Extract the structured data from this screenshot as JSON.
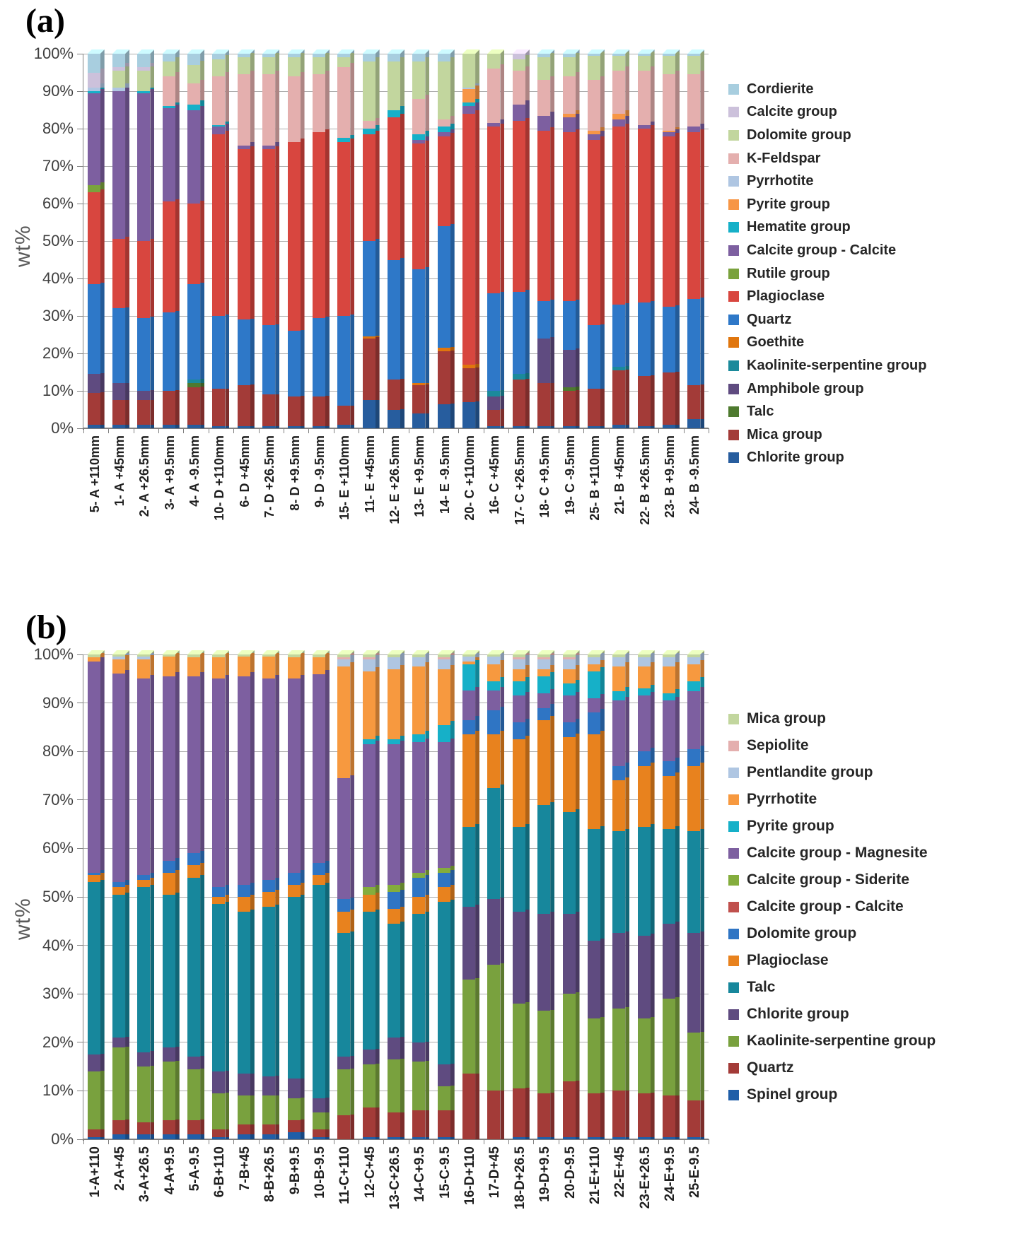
{
  "panels": [
    {
      "label": "(a)",
      "y_axis_label": "wt%"
    },
    {
      "label": "(b)",
      "y_axis_label": "wt%"
    }
  ],
  "chart_data": [
    {
      "type": "bar",
      "stacked": true,
      "panel": "a",
      "title": "",
      "xlabel": "",
      "ylabel": "wt%",
      "ylim": [
        0,
        100
      ],
      "y_tick_step": 10,
      "y_tick_suffix": "%",
      "grid": true,
      "legend_position": "right",
      "legend_order": "reverse-of-stack",
      "categories": [
        "5- A +110mm",
        "1- A +45mm",
        "2- A +26.5mm",
        "3- A +9.5mm",
        "4- A -9.5mm",
        "10- D +110mm",
        "6- D +45mm",
        "7- D +26.5mm",
        "8- D +9.5mm",
        "9- D -9.5mm",
        "15- E +110mm",
        "11- E +45mm",
        "12- E +26.5mm",
        "13- E +9.5mm",
        "14- E -9.5mm",
        "20- C +110mm",
        "16- C +45mm",
        "17- C +26.5mm",
        "18- C +9.5mm",
        "19- C -9.5mm",
        "25- B +110mm",
        "21- B +45mm",
        "22- B +26.5mm",
        "23- B +9.5mm",
        "24- B -9.5mm"
      ],
      "series": [
        {
          "name": "Chlorite group",
          "color": "#275D9E",
          "values": [
            1,
            1,
            1,
            1,
            1,
            0.5,
            0.5,
            0.5,
            0.5,
            0.5,
            1,
            7.5,
            5,
            4,
            6.5,
            7,
            0.5,
            0.5,
            0.5,
            0.5,
            0.5,
            1,
            0.5,
            1,
            2.5
          ]
        },
        {
          "name": "Mica group",
          "color": "#A33B38",
          "values": [
            8.5,
            6.5,
            6.5,
            9,
            10,
            10,
            11,
            8.5,
            8,
            8,
            5,
            16.5,
            8,
            7.5,
            14,
            9,
            4.5,
            12.5,
            11.5,
            9.5,
            10,
            14.5,
            13.5,
            14,
            9
          ]
        },
        {
          "name": "Talc",
          "color": "#4E7A2F",
          "values": [
            0,
            0,
            0,
            0,
            1,
            0,
            0,
            0,
            0,
            0,
            0,
            0,
            0,
            0,
            0,
            0,
            0,
            0,
            0,
            1,
            0,
            0,
            0,
            0,
            0
          ]
        },
        {
          "name": "Amphibole group",
          "color": "#5F4B80",
          "values": [
            5,
            4.5,
            2.5,
            0,
            0,
            0,
            0,
            0,
            0,
            0,
            0,
            0,
            0,
            0,
            0,
            0,
            3.5,
            0,
            12,
            10,
            0,
            0,
            0,
            0,
            0
          ]
        },
        {
          "name": "Kaolinite-serpentine group",
          "color": "#1B8A9B",
          "values": [
            0,
            0,
            0,
            0,
            1,
            0,
            0,
            0,
            0,
            0,
            0,
            0,
            0,
            0,
            0,
            0,
            1.5,
            1.5,
            0,
            0,
            0,
            1,
            0,
            0,
            0
          ]
        },
        {
          "name": "Goethite",
          "color": "#E0760E",
          "values": [
            0,
            0,
            0,
            0,
            0,
            0,
            0,
            0,
            0,
            0,
            0,
            0.5,
            0,
            0.5,
            1,
            1,
            0,
            0,
            0,
            0,
            0,
            0,
            0,
            0,
            0
          ]
        },
        {
          "name": "Quartz",
          "color": "#2E78C8",
          "values": [
            24,
            20,
            19.5,
            21,
            25.5,
            19.5,
            17.5,
            18.5,
            17.5,
            21,
            24,
            25.5,
            32,
            30.5,
            32.5,
            0,
            26,
            22,
            10,
            13,
            17,
            16.5,
            19.5,
            17.5,
            23
          ]
        },
        {
          "name": "Plagioclase",
          "color": "#D8463F",
          "values": [
            24.5,
            18.5,
            20.5,
            29.5,
            21.5,
            48.5,
            45.5,
            47,
            50.5,
            49.5,
            46.5,
            28.5,
            38,
            33.5,
            24,
            67,
            44.5,
            45.5,
            45.5,
            45,
            49.5,
            47.5,
            46.5,
            45.5,
            44.5
          ]
        },
        {
          "name": "Rutile group",
          "color": "#7AA23D",
          "values": [
            2,
            0,
            0,
            0,
            0,
            0,
            0,
            0,
            0,
            0,
            0,
            0,
            0,
            0,
            0,
            0,
            0,
            0,
            0,
            0,
            0,
            0,
            0,
            0,
            0
          ]
        },
        {
          "name": "Calcite group - Calcite",
          "color": "#7D5FA0",
          "values": [
            24.5,
            39.5,
            39.5,
            25,
            25,
            2,
            1,
            1,
            0,
            0,
            0,
            0,
            0,
            1,
            1,
            2,
            1,
            4.5,
            4,
            4,
            1.5,
            2,
            1,
            1,
            1.5
          ]
        },
        {
          "name": "Hematite group",
          "color": "#16B0C8",
          "values": [
            0.5,
            0,
            0.5,
            0.5,
            1.5,
            0.5,
            0,
            0,
            0,
            0,
            1,
            1.5,
            2,
            1.5,
            1.5,
            1,
            0,
            0,
            0,
            0,
            0,
            0,
            0,
            0,
            0
          ]
        },
        {
          "name": "Pyrite group",
          "color": "#F79646",
          "values": [
            0,
            0,
            0,
            0,
            0,
            0,
            0,
            0,
            0,
            0,
            0,
            0,
            0,
            0,
            0,
            3.5,
            0,
            0,
            0,
            1,
            1,
            1.5,
            0,
            0.5,
            0
          ]
        },
        {
          "name": "Pyrrhotite",
          "color": "#AFC6E2",
          "values": [
            1,
            1,
            0,
            0,
            0,
            0,
            0,
            0,
            0,
            0,
            0,
            0,
            0,
            0,
            0,
            0.5,
            0,
            0,
            0,
            0,
            0,
            0,
            0,
            0,
            0
          ]
        },
        {
          "name": "K-Feldspar",
          "color": "#E4AFAE",
          "values": [
            0,
            0,
            0,
            8,
            5.5,
            13,
            19,
            19,
            17.5,
            15.5,
            19,
            2,
            0,
            9.5,
            2,
            0,
            14.5,
            9,
            9.5,
            10,
            13.5,
            11.5,
            14.5,
            15,
            14
          ]
        },
        {
          "name": "Dolomite group",
          "color": "#C2D69E",
          "values": [
            0,
            4.5,
            5.5,
            4,
            5,
            4.5,
            4.5,
            4.5,
            5,
            4.5,
            2.5,
            16,
            13,
            10,
            15.5,
            9,
            4,
            3,
            6,
            5,
            6.5,
            4,
            4,
            5,
            5
          ]
        },
        {
          "name": "Calcite group",
          "color": "#CCC1DB",
          "values": [
            4,
            1,
            1,
            0,
            0,
            0,
            0,
            0,
            0,
            0,
            0,
            0,
            0,
            0,
            0,
            0,
            0,
            1.5,
            0,
            0,
            0,
            0,
            0,
            0,
            0
          ]
        },
        {
          "name": "Cordierite",
          "color": "#A8CEDF",
          "values": [
            5,
            3.5,
            3.5,
            2,
            3,
            1.5,
            1,
            1,
            1,
            1,
            1,
            2,
            2,
            2,
            2,
            0,
            0,
            0,
            1,
            1,
            0.5,
            0.5,
            0.5,
            0.5,
            0.5
          ]
        }
      ]
    },
    {
      "type": "bar",
      "stacked": true,
      "panel": "b",
      "title": "",
      "xlabel": "",
      "ylabel": "wt%",
      "ylim": [
        0,
        100
      ],
      "y_tick_step": 10,
      "y_tick_suffix": "%",
      "grid": true,
      "legend_position": "right",
      "legend_order": "reverse-of-stack",
      "categories": [
        "1-A+110",
        "2-A+45",
        "3-A+26.5",
        "4-A+9.5",
        "5-A-9.5",
        "6-B+110",
        "7-B+45",
        "8-B+26.5",
        "9-B+9.5",
        "10-B-9.5",
        "11-C+110",
        "12-C+45",
        "13-C+26.5",
        "14-C+9.5",
        "15-C-9.5",
        "16-D+110",
        "17-D+45",
        "18-D+26.5",
        "19-D+9.5",
        "20-D-9.5",
        "21-E+110",
        "22-E+45",
        "23-E+26.5",
        "24-E+9.5",
        "25-E-9.5"
      ],
      "series": [
        {
          "name": "Spinel group",
          "color": "#1F5EA8",
          "values": [
            0.5,
            1,
            1,
            1,
            1,
            0.5,
            1,
            1,
            1.5,
            0.5,
            0,
            0.5,
            0.5,
            0.5,
            0.5,
            0,
            0,
            0.5,
            0.5,
            0.5,
            0.5,
            0.5,
            0.5,
            0.5,
            0.5
          ]
        },
        {
          "name": "Quartz",
          "color": "#A33B38",
          "values": [
            1.5,
            3,
            2.5,
            3,
            3,
            1.5,
            2,
            2,
            2.5,
            1.5,
            5,
            6,
            5,
            5.5,
            5.5,
            13.5,
            10,
            10,
            9,
            11.5,
            9,
            9.5,
            9,
            8.5,
            7.5
          ]
        },
        {
          "name": "Kaolinite-serpentine group",
          "color": "#79A13E",
          "values": [
            12,
            15,
            11.5,
            12,
            10.5,
            7.5,
            6,
            6,
            4.5,
            3.5,
            9.5,
            9,
            11,
            10,
            5,
            19.5,
            26,
            17.5,
            17,
            18,
            15.5,
            17,
            15.5,
            20,
            14
          ]
        },
        {
          "name": "Chlorite group",
          "color": "#5F4B80",
          "values": [
            3.5,
            2,
            3,
            3,
            2.5,
            4.5,
            4.5,
            4,
            4,
            3,
            2.5,
            3,
            4.5,
            4,
            4.5,
            15,
            13.5,
            19,
            20,
            16.5,
            16,
            15.5,
            17,
            15.5,
            20.5
          ]
        },
        {
          "name": "Talc",
          "color": "#17879C",
          "values": [
            35.5,
            29.5,
            34,
            31.5,
            37,
            34.5,
            33.5,
            35,
            37.5,
            44,
            25.5,
            28.5,
            23.5,
            26.5,
            33.5,
            16.5,
            23,
            17.5,
            22.5,
            21,
            23,
            21,
            22.5,
            19.5,
            21
          ]
        },
        {
          "name": "Plagioclase",
          "color": "#E8821E",
          "values": [
            1.5,
            1.5,
            1.5,
            4.5,
            2.5,
            1.5,
            3,
            3,
            2.5,
            2,
            4.5,
            3.5,
            3,
            3.5,
            3,
            19,
            11,
            18,
            17.5,
            15.5,
            19.5,
            10.5,
            12.5,
            11,
            13.5
          ]
        },
        {
          "name": "Dolomite group",
          "color": "#2F75C4",
          "values": [
            0.5,
            1,
            1,
            2.5,
            2.5,
            2,
            2.5,
            2.5,
            2.5,
            2.5,
            2.5,
            0,
            3.5,
            4,
            3,
            3,
            5,
            3.5,
            2.5,
            3,
            4.5,
            3,
            3,
            3,
            3.5
          ]
        },
        {
          "name": "Calcite group - Calcite",
          "color": "#C0504D",
          "values": [
            0,
            0,
            0,
            0,
            0,
            0,
            0,
            0,
            0,
            0,
            0,
            0,
            0,
            0,
            0,
            0,
            0,
            0,
            0,
            0,
            0,
            0,
            0,
            0,
            0
          ]
        },
        {
          "name": "Calcite group - Siderite",
          "color": "#84AD3D",
          "values": [
            0,
            0,
            0,
            0,
            0,
            0,
            0,
            0,
            0,
            0,
            0,
            1.5,
            1.5,
            1,
            1,
            0,
            0,
            0,
            0,
            0,
            0,
            0,
            0,
            0,
            0
          ]
        },
        {
          "name": "Calcite group - Magnesite",
          "color": "#7D5FA0",
          "values": [
            43.5,
            43,
            40.5,
            38,
            36.5,
            43,
            43,
            41.5,
            40,
            39,
            25,
            29.5,
            29,
            27,
            26,
            6,
            4,
            5.5,
            3,
            5.5,
            3,
            13.5,
            11.5,
            12.5,
            12
          ]
        },
        {
          "name": "Pyrite group",
          "color": "#16B0C8",
          "values": [
            0,
            0,
            0,
            0,
            0,
            0,
            0,
            0,
            0,
            0,
            0,
            1,
            1,
            1.5,
            3.5,
            5.5,
            2,
            3,
            3.5,
            2.5,
            5.5,
            2,
            1.5,
            1.5,
            2
          ]
        },
        {
          "name": "Pyrrhotite",
          "color": "#F7993F",
          "values": [
            1,
            3,
            4,
            4,
            4,
            4.5,
            4,
            4.5,
            4.5,
            3.5,
            23,
            14,
            14.5,
            14,
            11.5,
            0.5,
            3.5,
            2.5,
            1.5,
            3,
            1.5,
            5,
            4.5,
            5.5,
            3.5
          ]
        },
        {
          "name": "Pentlandite group",
          "color": "#AFC6E2",
          "values": [
            0,
            0.5,
            0.5,
            0,
            0,
            0,
            0,
            0,
            0,
            0,
            1.5,
            2.5,
            2.5,
            2,
            2,
            1,
            1.5,
            2,
            2,
            2,
            1.5,
            2,
            2,
            2,
            1.5
          ]
        },
        {
          "name": "Sepiolite",
          "color": "#E4AFAE",
          "values": [
            0,
            0,
            0,
            0,
            0,
            0,
            0,
            0,
            0,
            0,
            0.5,
            0.5,
            0,
            0,
            0.5,
            0,
            0,
            0.5,
            0.5,
            0.5,
            0,
            0,
            0,
            0,
            0
          ]
        },
        {
          "name": "Mica group",
          "color": "#C2D69E",
          "values": [
            0.5,
            0.5,
            0.5,
            0.5,
            0.5,
            0.5,
            0.5,
            0.5,
            0.5,
            0.5,
            0.5,
            0.5,
            0.5,
            0.5,
            0.5,
            0.5,
            0.5,
            0.5,
            0.5,
            0.5,
            0.5,
            0.5,
            0.5,
            0.5,
            0.5
          ]
        }
      ]
    }
  ]
}
